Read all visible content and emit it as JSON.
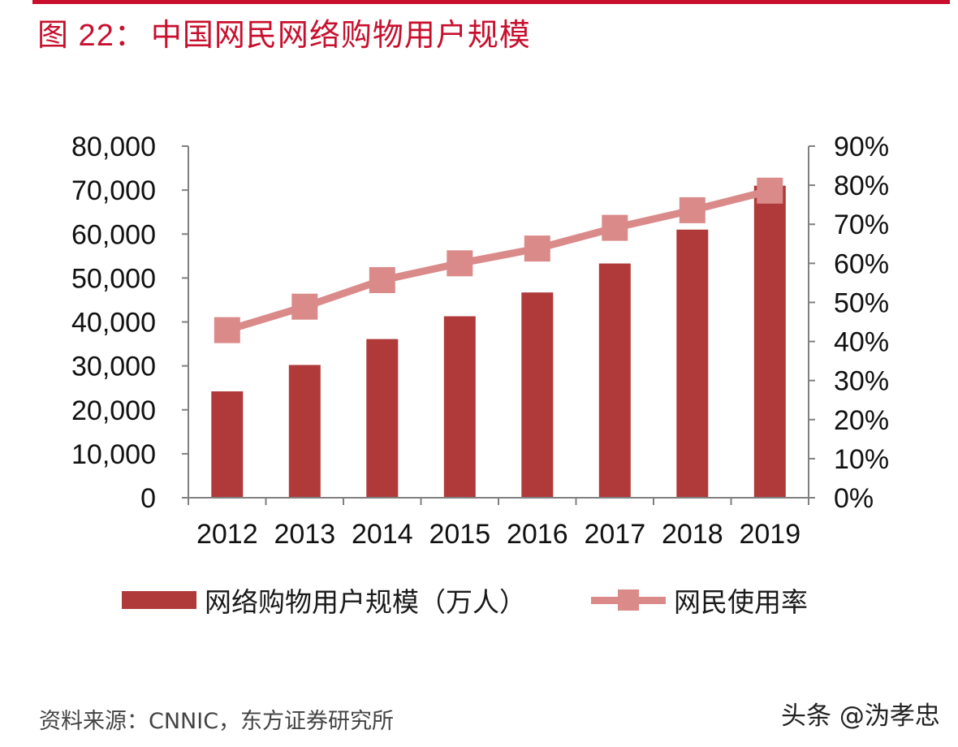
{
  "figure": {
    "title_prefix": "图 22：",
    "title_text": "中国网民网络购物用户规模",
    "source": "资料来源：CNNIC，东方证券研究所",
    "watermark": "头条 @沩孝忠"
  },
  "chart_data": {
    "type": "bar",
    "title": "中国网民网络购物用户规模",
    "categories": [
      "2012",
      "2013",
      "2014",
      "2015",
      "2016",
      "2017",
      "2018",
      "2019"
    ],
    "series": [
      {
        "name": "网络购物用户规模（万人）",
        "type": "bar",
        "axis": "left",
        "values": [
          24200,
          30200,
          36100,
          41300,
          46700,
          53300,
          61000,
          71000
        ]
      },
      {
        "name": "网民使用率",
        "type": "line",
        "axis": "right",
        "values": [
          42.9,
          48.9,
          55.7,
          60.0,
          63.8,
          69.1,
          73.6,
          78.6
        ]
      }
    ],
    "left_axis": {
      "ylim": [
        0,
        80000
      ],
      "ticks": [
        "0",
        "10,000",
        "20,000",
        "30,000",
        "40,000",
        "50,000",
        "60,000",
        "70,000",
        "80,000"
      ]
    },
    "right_axis": {
      "ylim": [
        0,
        90
      ],
      "ticks": [
        "0%",
        "10%",
        "20%",
        "30%",
        "40%",
        "50%",
        "60%",
        "70%",
        "80%",
        "90%"
      ]
    },
    "legend_position": "bottom",
    "grid": false,
    "colors": {
      "bar": "#b03a3a",
      "line": "#db8a8a",
      "axis": "#808080"
    }
  }
}
